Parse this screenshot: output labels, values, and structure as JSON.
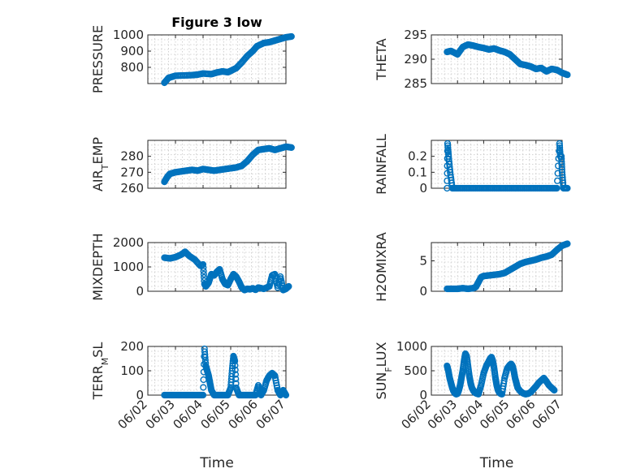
{
  "figure_title": "Figure 3 low",
  "chart_data": [
    {
      "type": "scatter",
      "name": "pressure-panel",
      "title": "Figure 3 low",
      "ylabel": "PRESSURE",
      "xlabel": "",
      "xlim": [
        "06/02",
        "06/07"
      ],
      "ylim": [
        700,
        1000
      ],
      "yticks": [
        800,
        900,
        1000
      ],
      "xticks": [
        "06/02",
        "06/03",
        "06/04",
        "06/05",
        "06/06",
        "06/07"
      ],
      "x": [
        2.6,
        2.75,
        3.0,
        3.3,
        3.6,
        3.8,
        4.0,
        4.3,
        4.5,
        4.7,
        4.9,
        5.0,
        5.2,
        5.4,
        5.6,
        5.8,
        5.95,
        6.2,
        6.4,
        6.6,
        6.8,
        7.0,
        7.2
      ],
      "y": [
        705,
        735,
        748,
        750,
        752,
        755,
        762,
        758,
        768,
        775,
        770,
        778,
        795,
        830,
        870,
        900,
        930,
        950,
        955,
        965,
        975,
        985,
        990
      ]
    },
    {
      "type": "scatter",
      "name": "theta-panel",
      "ylabel": "THETA",
      "xlabel": "",
      "xlim": [
        "06/02",
        "06/07"
      ],
      "ylim": [
        285,
        295
      ],
      "yticks": [
        285,
        290,
        295
      ],
      "xticks": [
        "06/02",
        "06/03",
        "06/04",
        "06/05",
        "06/06",
        "06/07"
      ],
      "x": [
        2.6,
        2.75,
        3.0,
        3.2,
        3.4,
        3.6,
        3.8,
        4.0,
        4.2,
        4.4,
        4.6,
        4.8,
        5.0,
        5.2,
        5.4,
        5.6,
        5.8,
        6.0,
        6.2,
        6.4,
        6.6,
        6.8,
        7.0,
        7.2
      ],
      "y": [
        291.5,
        291.7,
        291.0,
        292.5,
        293.0,
        292.8,
        292.5,
        292.3,
        292.0,
        292.2,
        291.8,
        291.5,
        291.0,
        290.0,
        289.0,
        288.8,
        288.5,
        288.0,
        288.2,
        287.5,
        288.0,
        287.8,
        287.2,
        286.8
      ]
    },
    {
      "type": "scatter",
      "name": "air-temp-panel",
      "ylabel": "AIR_TEMP",
      "xlabel": "",
      "xlim": [
        "06/02",
        "06/07"
      ],
      "ylim": [
        260,
        290
      ],
      "yticks": [
        260,
        270,
        280
      ],
      "xticks": [
        "06/02",
        "06/03",
        "06/04",
        "06/05",
        "06/06",
        "06/07"
      ],
      "x": [
        2.6,
        2.7,
        2.8,
        3.0,
        3.2,
        3.4,
        3.6,
        3.8,
        4.0,
        4.2,
        4.4,
        4.6,
        4.8,
        5.0,
        5.2,
        5.4,
        5.6,
        5.8,
        6.0,
        6.2,
        6.4,
        6.6,
        6.8,
        7.0,
        7.2
      ],
      "y": [
        264,
        267,
        269,
        270,
        270.5,
        271,
        271.5,
        271,
        272,
        271.5,
        271,
        271.5,
        272,
        272.5,
        273,
        274,
        277,
        281,
        284,
        284.5,
        285,
        284,
        285,
        286,
        285.5
      ]
    },
    {
      "type": "scatter",
      "name": "rainfall-panel",
      "ylabel": "RAINFALL",
      "xlabel": "",
      "xlim": [
        "06/02",
        "06/07"
      ],
      "ylim": [
        0,
        0.3
      ],
      "yticks": [
        0,
        0.1,
        0.2
      ],
      "xticks": [
        "06/02",
        "06/03",
        "06/04",
        "06/05",
        "06/06",
        "06/07"
      ],
      "x": [
        2.6,
        2.62,
        2.66,
        2.72,
        2.8,
        3.0,
        3.3,
        3.6,
        3.9,
        4.2,
        4.5,
        4.8,
        5.1,
        5.4,
        5.7,
        6.0,
        6.3,
        6.6,
        6.8,
        6.9,
        6.93,
        6.97,
        7.0,
        7.05,
        7.2
      ],
      "y": [
        0,
        0.28,
        0.2,
        0.1,
        0,
        0,
        0,
        0,
        0,
        0,
        0,
        0,
        0,
        0,
        0,
        0,
        0,
        0,
        0,
        0.28,
        0.2,
        0.2,
        0.1,
        0,
        0
      ]
    },
    {
      "type": "scatter",
      "name": "mixdepth-panel",
      "ylabel": "MIXDEPTH",
      "xlabel": "",
      "xlim": [
        "06/02",
        "06/07"
      ],
      "ylim": [
        0,
        2000
      ],
      "yticks": [
        0,
        1000,
        2000
      ],
      "xticks": [
        "06/02",
        "06/03",
        "06/04",
        "06/05",
        "06/06",
        "06/07"
      ],
      "x": [
        2.6,
        2.8,
        3.0,
        3.2,
        3.35,
        3.5,
        3.7,
        3.9,
        4.0,
        4.05,
        4.1,
        4.2,
        4.3,
        4.4,
        4.5,
        4.6,
        4.7,
        4.8,
        4.9,
        5.0,
        5.1,
        5.2,
        5.3,
        5.4,
        5.5,
        5.6,
        5.7,
        5.8,
        5.9,
        6.0,
        6.2,
        6.4,
        6.5,
        6.6,
        6.7,
        6.8,
        6.9,
        7.0,
        7.1
      ],
      "y": [
        1380,
        1350,
        1400,
        1500,
        1620,
        1450,
        1300,
        1050,
        1100,
        300,
        200,
        350,
        700,
        650,
        800,
        900,
        500,
        300,
        250,
        500,
        700,
        600,
        400,
        150,
        50,
        100,
        80,
        120,
        60,
        150,
        100,
        200,
        650,
        700,
        150,
        600,
        50,
        100,
        200
      ]
    },
    {
      "type": "scatter",
      "name": "h2o-mixratio-panel",
      "ylabel": "H2OMIXRA",
      "xlabel": "",
      "xlim": [
        "06/02",
        "06/07"
      ],
      "ylim": [
        0,
        8
      ],
      "yticks": [
        0,
        5
      ],
      "xticks": [
        "06/02",
        "06/03",
        "06/04",
        "06/05",
        "06/06",
        "06/07"
      ],
      "x": [
        2.6,
        2.8,
        3.0,
        3.2,
        3.4,
        3.6,
        3.7,
        3.8,
        3.9,
        4.0,
        4.2,
        4.4,
        4.6,
        4.8,
        5.0,
        5.2,
        5.4,
        5.6,
        5.8,
        6.0,
        6.2,
        6.4,
        6.6,
        6.8,
        7.0,
        7.2
      ],
      "y": [
        0.4,
        0.4,
        0.4,
        0.5,
        0.4,
        0.5,
        0.7,
        1.5,
        2.3,
        2.5,
        2.6,
        2.7,
        2.8,
        3.0,
        3.5,
        4.0,
        4.5,
        4.8,
        5.0,
        5.2,
        5.5,
        5.7,
        6.0,
        6.8,
        7.5,
        7.8
      ]
    },
    {
      "type": "scatter",
      "name": "terr-msl-panel",
      "ylabel": "TERR_MSL",
      "xlabel": "Time",
      "xlim": [
        "06/02",
        "06/07"
      ],
      "ylim": [
        0,
        200
      ],
      "yticks": [
        0,
        100,
        200
      ],
      "xticks": [
        "06/02",
        "06/03",
        "06/04",
        "06/05",
        "06/06",
        "06/07"
      ],
      "x": [
        2.6,
        2.8,
        3.0,
        3.2,
        3.4,
        3.6,
        3.8,
        4.0,
        4.05,
        4.1,
        4.15,
        4.2,
        4.25,
        4.3,
        4.4,
        4.5,
        4.6,
        4.7,
        4.8,
        4.9,
        5.0,
        5.05,
        5.1,
        5.15,
        5.2,
        5.3,
        5.4,
        5.5,
        5.6,
        5.7,
        5.8,
        5.9,
        6.0,
        6.1,
        6.2,
        6.3,
        6.4,
        6.5,
        6.6,
        6.7,
        6.8,
        6.9,
        7.0
      ],
      "y": [
        0,
        0,
        0,
        0,
        0,
        0,
        0,
        0,
        190,
        120,
        100,
        80,
        50,
        20,
        0,
        0,
        0,
        0,
        0,
        0,
        30,
        100,
        160,
        140,
        30,
        0,
        0,
        0,
        0,
        0,
        0,
        0,
        40,
        0,
        20,
        60,
        80,
        90,
        80,
        20,
        0,
        20,
        0
      ]
    },
    {
      "type": "scatter",
      "name": "sun-flux-panel",
      "ylabel": "SUN_FLUX",
      "xlabel": "Time",
      "xlim": [
        "06/02",
        "06/07"
      ],
      "ylim": [
        0,
        1000
      ],
      "yticks": [
        0,
        500,
        1000
      ],
      "xticks": [
        "06/02",
        "06/03",
        "06/04",
        "06/05",
        "06/06",
        "06/07"
      ],
      "x": [
        2.6,
        2.65,
        2.7,
        2.75,
        2.8,
        2.85,
        2.9,
        2.95,
        3.0,
        3.05,
        3.1,
        3.15,
        3.2,
        3.25,
        3.3,
        3.35,
        3.4,
        3.45,
        3.5,
        3.55,
        3.6,
        3.65,
        3.7,
        3.8,
        3.9,
        4.0,
        4.1,
        4.2,
        4.25,
        4.3,
        4.35,
        4.4,
        4.45,
        4.5,
        4.55,
        4.6,
        4.65,
        4.7,
        4.8,
        4.9,
        5.0,
        5.05,
        5.1,
        5.15,
        5.2,
        5.25,
        5.3,
        5.4,
        5.5,
        5.6,
        5.7,
        5.8,
        5.9,
        6.0,
        6.1,
        6.2,
        6.3,
        6.4,
        6.5,
        6.6,
        6.7
      ],
      "y": [
        600,
        500,
        350,
        250,
        150,
        80,
        40,
        20,
        30,
        100,
        200,
        350,
        500,
        700,
        850,
        800,
        600,
        400,
        250,
        150,
        100,
        60,
        40,
        20,
        200,
        450,
        600,
        700,
        750,
        780,
        700,
        550,
        350,
        200,
        100,
        50,
        30,
        20,
        350,
        550,
        620,
        640,
        600,
        500,
        350,
        250,
        150,
        80,
        40,
        20,
        30,
        60,
        120,
        180,
        250,
        300,
        350,
        280,
        200,
        150,
        100
      ]
    }
  ]
}
